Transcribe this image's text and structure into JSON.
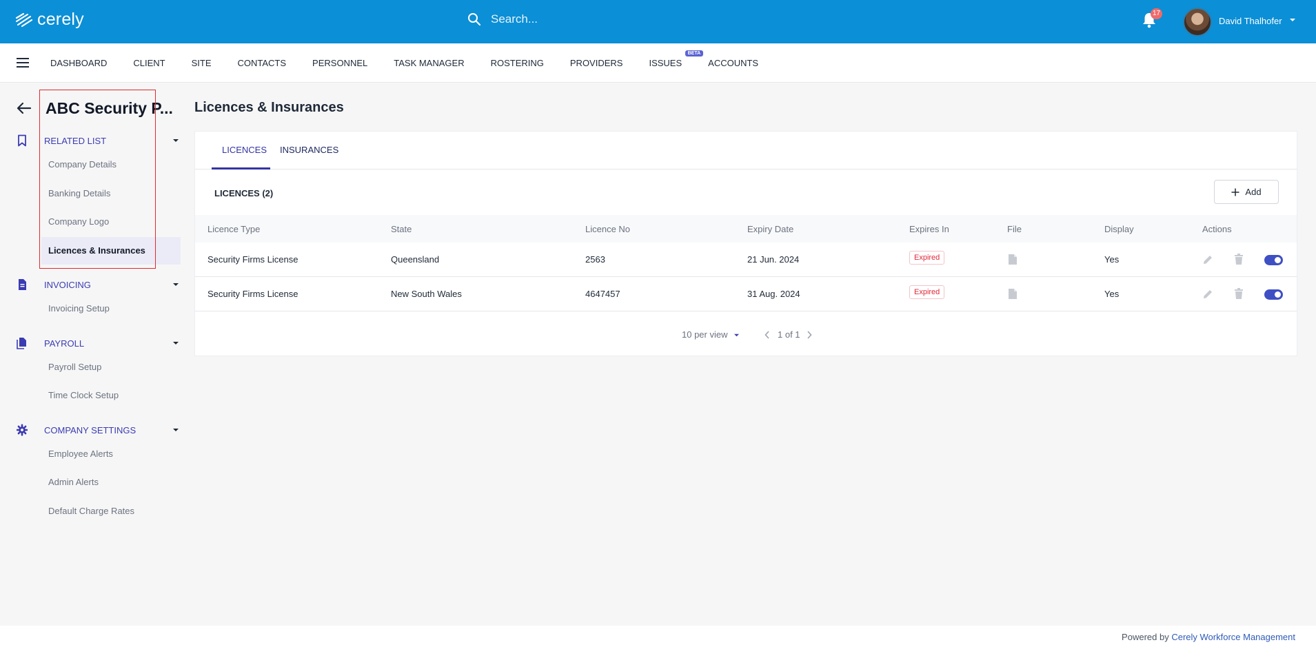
{
  "app": {
    "logo": "cerely"
  },
  "search": {
    "placeholder": "Search..."
  },
  "notifications": {
    "count": "17"
  },
  "user": {
    "name": "David Thalhofer"
  },
  "nav": {
    "items": [
      "DASHBOARD",
      "CLIENT",
      "SITE",
      "CONTACTS",
      "PERSONNEL",
      "TASK MANAGER",
      "ROSTERING",
      "PROVIDERS",
      "ISSUES",
      "ACCOUNTS"
    ],
    "beta_label": "BETA"
  },
  "sidebar": {
    "company_title": "ABC Security P...",
    "sections": [
      {
        "label": "RELATED LIST",
        "icon": "bookmark-icon",
        "items": [
          "Company Details",
          "Banking Details",
          "Company Logo",
          "Licences & Insurances"
        ]
      },
      {
        "label": "INVOICING",
        "icon": "document-icon",
        "items": [
          "Invoicing Setup"
        ]
      },
      {
        "label": "PAYROLL",
        "icon": "documents-icon",
        "items": [
          "Payroll Setup",
          "Time Clock Setup"
        ]
      },
      {
        "label": "COMPANY SETTINGS",
        "icon": "gear-icon",
        "items": [
          "Employee Alerts",
          "Admin Alerts",
          "Default Charge Rates"
        ]
      }
    ],
    "active_item": "Licences & Insurances"
  },
  "main": {
    "title": "Licences & Insurances",
    "tabs": [
      "LICENCES",
      "INSURANCES"
    ],
    "active_tab": "LICENCES",
    "count_label": "LICENCES (2)",
    "add_label": "Add",
    "columns": [
      "Licence Type",
      "State",
      "Licence No",
      "Expiry Date",
      "Expires In",
      "File",
      "Display",
      "Actions"
    ],
    "rows": [
      {
        "type": "Security Firms License",
        "state": "Queensland",
        "number": "2563",
        "expiry": "21 Jun. 2024",
        "expires_in": "Expired",
        "display": "Yes",
        "enabled": true
      },
      {
        "type": "Security Firms License",
        "state": "New South Wales",
        "number": "4647457",
        "expiry": "31 Aug. 2024",
        "expires_in": "Expired",
        "display": "Yes",
        "enabled": true
      }
    ],
    "pagination": {
      "per_view": "10 per view",
      "page": "1 of 1"
    }
  },
  "footer": {
    "prefix": "Powered by",
    "link": "Cerely Workforce Management"
  },
  "colors": {
    "topbar": "#0b8fd6",
    "accent": "#3434a4",
    "expired": "#e0283a",
    "highlight": "#e0282e"
  }
}
